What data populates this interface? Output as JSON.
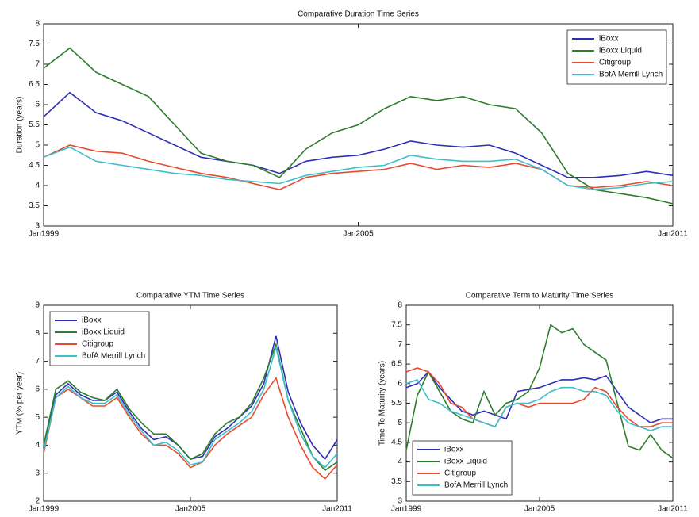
{
  "chart_data": [
    {
      "type": "line",
      "title": "Comparative Duration Time Series",
      "y_label": "Duration (years)",
      "x": [
        1999,
        1999.5,
        2000,
        2000.5,
        2001,
        2001.5,
        2002,
        2002.5,
        2003,
        2003.5,
        2004,
        2004.5,
        2005,
        2005.5,
        2006,
        2006.5,
        2007,
        2007.5,
        2008,
        2008.5,
        2009,
        2009.5,
        2010,
        2010.5,
        2011
      ],
      "xlim": [
        1999,
        2011
      ],
      "xticks": [
        {
          "value": 1999,
          "label": "Jan1999"
        },
        {
          "value": 2005,
          "label": "Jan2005"
        },
        {
          "value": 2011,
          "label": "Jan2011"
        }
      ],
      "ylim": [
        3,
        8
      ],
      "yticks": [
        3,
        3.5,
        4,
        4.5,
        5,
        5.5,
        6,
        6.5,
        7,
        7.5,
        8
      ],
      "legend": "upper right",
      "series": [
        {
          "name": "iBoxx",
          "color": "#2f2fb4",
          "values": [
            5.7,
            6.3,
            5.8,
            5.6,
            5.3,
            5.0,
            4.7,
            4.6,
            4.5,
            4.3,
            4.6,
            4.7,
            4.75,
            4.9,
            5.1,
            5.0,
            4.95,
            5.0,
            4.8,
            4.5,
            4.2,
            4.2,
            4.25,
            4.35,
            4.25
          ]
        },
        {
          "name": "iBoxx Liquid",
          "color": "#2e7d2e",
          "values": [
            6.9,
            7.4,
            6.8,
            6.5,
            6.2,
            5.5,
            4.8,
            4.6,
            4.5,
            4.2,
            4.9,
            5.3,
            5.5,
            5.9,
            6.2,
            6.1,
            6.2,
            6.0,
            5.9,
            5.3,
            4.3,
            3.9,
            3.8,
            3.7,
            3.55
          ]
        },
        {
          "name": "Citigroup",
          "color": "#e84a2e",
          "values": [
            4.7,
            5.0,
            4.85,
            4.8,
            4.6,
            4.45,
            4.3,
            4.2,
            4.05,
            3.9,
            4.2,
            4.3,
            4.35,
            4.4,
            4.55,
            4.4,
            4.5,
            4.45,
            4.55,
            4.4,
            4.0,
            3.95,
            4.0,
            4.1,
            4.0
          ]
        },
        {
          "name": "BofA Merrill Lynch",
          "color": "#3cbfc9",
          "values": [
            4.7,
            4.95,
            4.6,
            4.5,
            4.4,
            4.3,
            4.25,
            4.15,
            4.1,
            4.05,
            4.25,
            4.35,
            4.45,
            4.5,
            4.75,
            4.65,
            4.6,
            4.6,
            4.65,
            4.4,
            4.0,
            3.9,
            3.95,
            4.05,
            4.1
          ]
        }
      ]
    },
    {
      "type": "line",
      "title": "Comparative YTM Time Series",
      "y_label": "YTM (% per year)",
      "x": [
        1999,
        1999.5,
        2000,
        2000.5,
        2001,
        2001.5,
        2002,
        2002.5,
        2003,
        2003.5,
        2004,
        2004.5,
        2005,
        2005.5,
        2006,
        2006.5,
        2007,
        2007.5,
        2008,
        2008.5,
        2009,
        2009.5,
        2010,
        2010.5,
        2011
      ],
      "xlim": [
        1999,
        2011
      ],
      "xticks": [
        {
          "value": 1999,
          "label": "Jan1999"
        },
        {
          "value": 2005,
          "label": "Jan2005"
        },
        {
          "value": 2011,
          "label": "Jan2011"
        }
      ],
      "ylim": [
        2,
        9
      ],
      "yticks": [
        2,
        3,
        4,
        5,
        6,
        7,
        8,
        9
      ],
      "legend": "upper left",
      "series": [
        {
          "name": "iBoxx",
          "color": "#2f2fb4",
          "values": [
            3.9,
            5.8,
            6.2,
            5.8,
            5.6,
            5.6,
            5.9,
            5.2,
            4.6,
            4.2,
            4.3,
            4.0,
            3.5,
            3.6,
            4.3,
            4.6,
            5.0,
            5.4,
            6.2,
            7.9,
            5.9,
            4.8,
            4.0,
            3.5,
            4.2
          ]
        },
        {
          "name": "iBoxx Liquid",
          "color": "#2e7d2e",
          "values": [
            4.0,
            6.0,
            6.3,
            5.9,
            5.7,
            5.6,
            6.0,
            5.3,
            4.8,
            4.4,
            4.4,
            4.0,
            3.5,
            3.7,
            4.4,
            4.8,
            5.0,
            5.5,
            6.4,
            7.6,
            5.6,
            4.6,
            3.6,
            3.1,
            3.4
          ]
        },
        {
          "name": "Citigroup",
          "color": "#e84a2e",
          "values": [
            3.7,
            5.7,
            6.0,
            5.7,
            5.4,
            5.4,
            5.7,
            5.0,
            4.4,
            4.0,
            4.0,
            3.7,
            3.2,
            3.4,
            4.0,
            4.4,
            4.7,
            5.0,
            5.8,
            6.4,
            5.0,
            4.0,
            3.2,
            2.8,
            3.3
          ]
        },
        {
          "name": "BofA Merrill Lynch",
          "color": "#3cbfc9",
          "values": [
            3.8,
            5.7,
            6.1,
            5.7,
            5.5,
            5.5,
            5.8,
            5.1,
            4.5,
            4.0,
            4.1,
            3.8,
            3.3,
            3.4,
            4.2,
            4.5,
            4.8,
            5.2,
            6.0,
            7.5,
            5.6,
            4.4,
            3.6,
            3.2,
            3.7
          ]
        }
      ]
    },
    {
      "type": "line",
      "title": "Comparative Term to Maturity Time Series",
      "y_label": "Time To Maturity (years)",
      "x": [
        1999,
        1999.5,
        2000,
        2000.5,
        2001,
        2001.5,
        2002,
        2002.5,
        2003,
        2003.5,
        2004,
        2004.5,
        2005,
        2005.5,
        2006,
        2006.5,
        2007,
        2007.5,
        2008,
        2008.5,
        2009,
        2009.5,
        2010,
        2010.5,
        2011
      ],
      "xlim": [
        1999,
        2011
      ],
      "xticks": [
        {
          "value": 1999,
          "label": "Jan1999"
        },
        {
          "value": 2005,
          "label": "Jan2005"
        },
        {
          "value": 2011,
          "label": "Jan2011"
        }
      ],
      "ylim": [
        3,
        8
      ],
      "yticks": [
        3,
        3.5,
        4,
        4.5,
        5,
        5.5,
        6,
        6.5,
        7,
        7.5,
        8
      ],
      "legend": "lower left",
      "series": [
        {
          "name": "iBoxx",
          "color": "#2f2fb4",
          "values": [
            5.9,
            6.0,
            6.3,
            5.9,
            5.6,
            5.3,
            5.2,
            5.3,
            5.2,
            5.1,
            5.8,
            5.85,
            5.9,
            6.0,
            6.1,
            6.1,
            6.15,
            6.1,
            6.2,
            5.8,
            5.4,
            5.2,
            5.0,
            5.1,
            5.1
          ]
        },
        {
          "name": "iBoxx Liquid",
          "color": "#2e7d2e",
          "values": [
            4.3,
            5.7,
            6.3,
            5.8,
            5.3,
            5.1,
            5.0,
            5.8,
            5.2,
            5.5,
            5.6,
            5.8,
            6.4,
            7.5,
            7.3,
            7.4,
            7.0,
            6.8,
            6.6,
            5.5,
            4.4,
            4.3,
            4.7,
            4.3,
            4.1
          ]
        },
        {
          "name": "Citigroup",
          "color": "#e84a2e",
          "values": [
            6.3,
            6.4,
            6.3,
            6.0,
            5.5,
            5.4,
            5.1,
            5.0,
            4.9,
            5.4,
            5.5,
            5.4,
            5.5,
            5.5,
            5.5,
            5.5,
            5.6,
            5.9,
            5.8,
            5.4,
            5.1,
            4.9,
            4.9,
            5.0,
            5.0
          ]
        },
        {
          "name": "BofA Merrill Lynch",
          "color": "#3cbfc9",
          "values": [
            6.0,
            6.1,
            5.6,
            5.5,
            5.3,
            5.2,
            5.1,
            5.0,
            4.9,
            5.4,
            5.5,
            5.5,
            5.6,
            5.8,
            5.9,
            5.9,
            5.8,
            5.8,
            5.7,
            5.3,
            5.0,
            4.9,
            4.8,
            4.9,
            4.9
          ]
        }
      ]
    }
  ]
}
